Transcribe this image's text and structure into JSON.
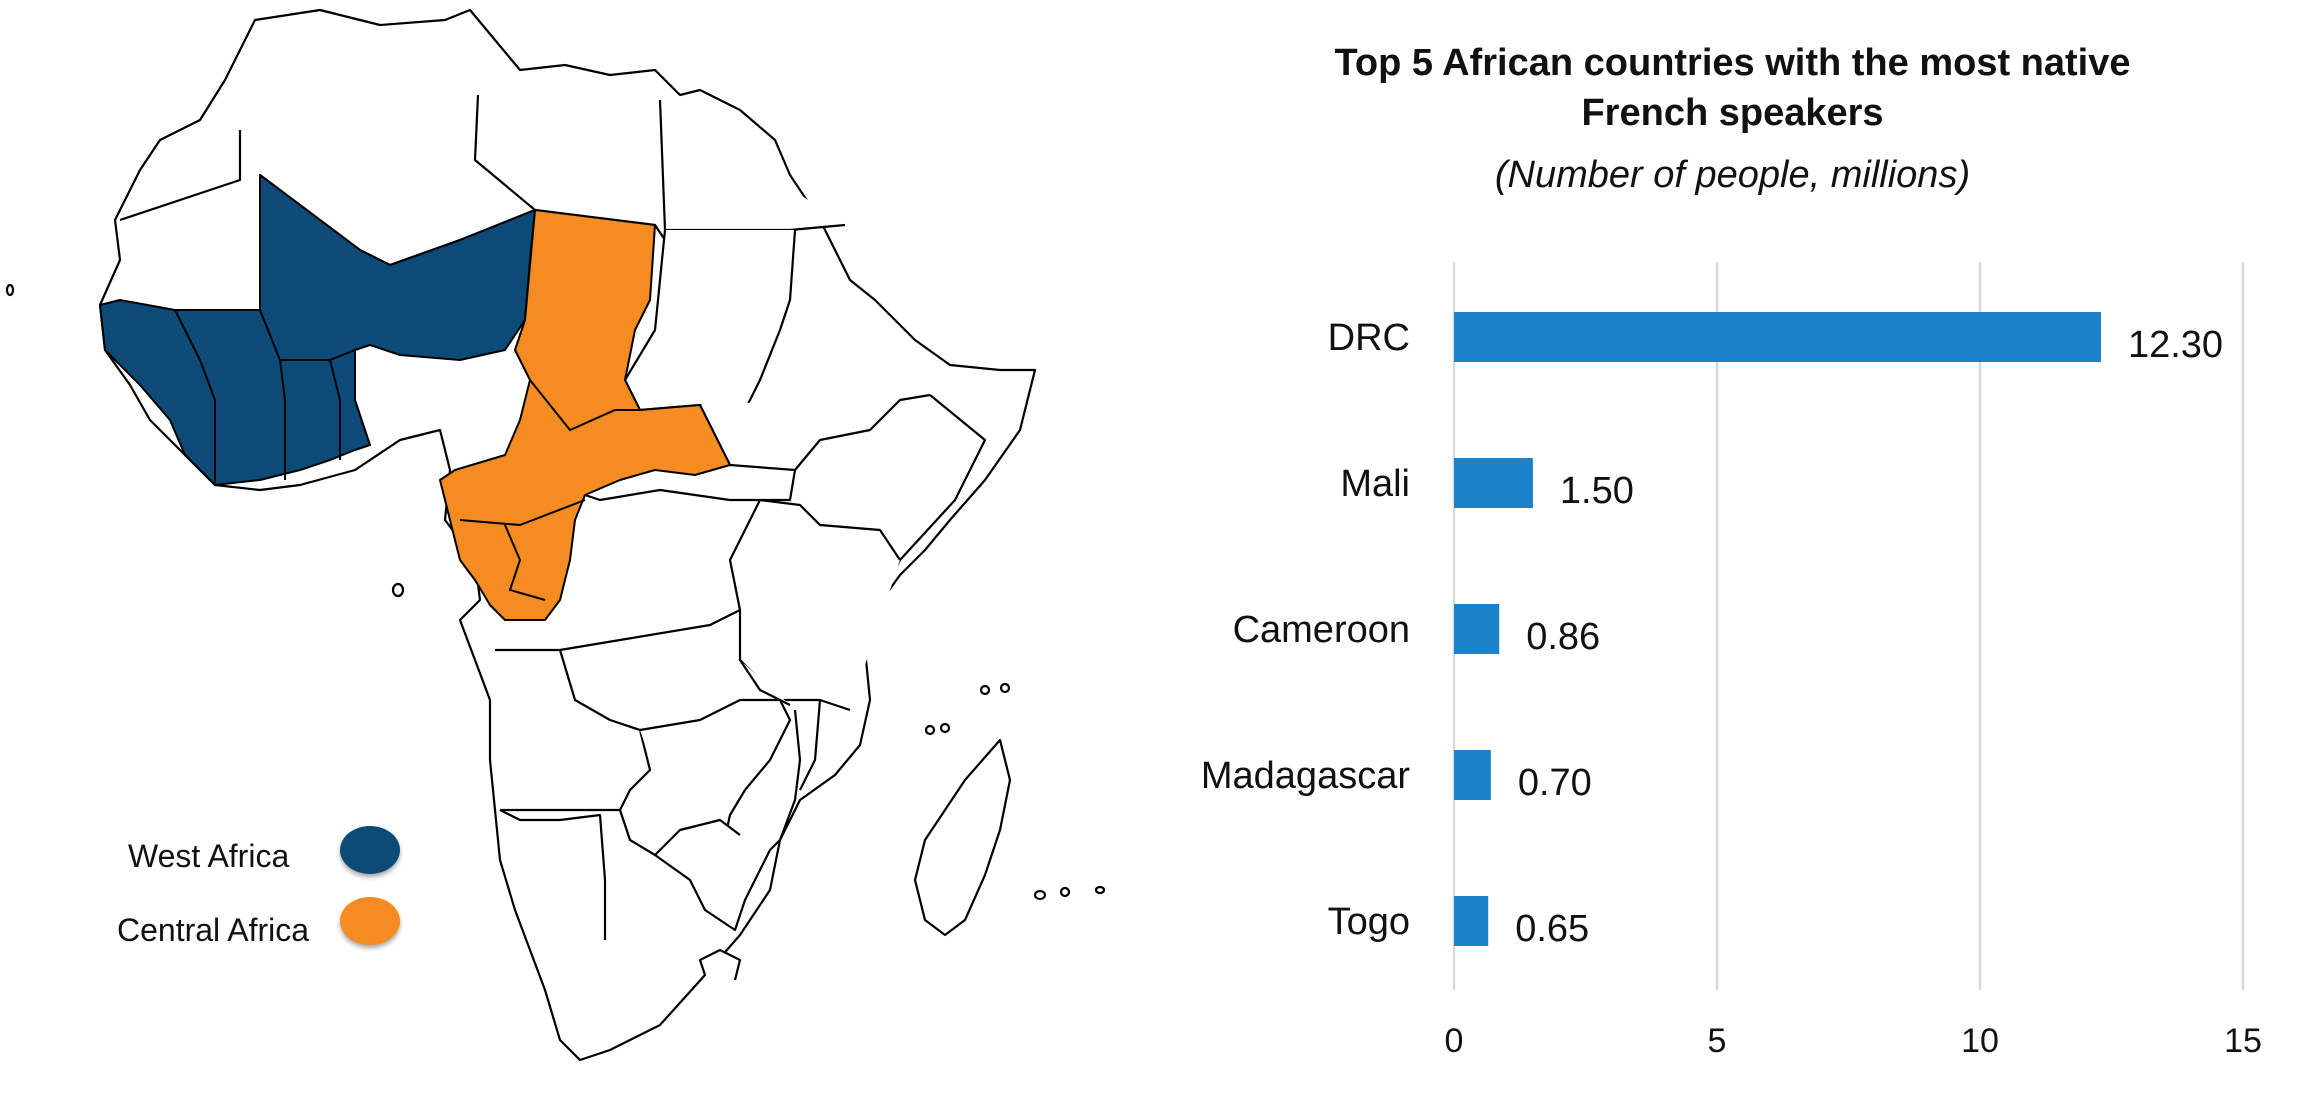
{
  "map": {
    "legend": [
      {
        "label": "West Africa",
        "color": "#0e4a78"
      },
      {
        "label": "Central Africa",
        "color": "#f58c22"
      }
    ]
  },
  "chart_data": {
    "type": "bar",
    "orientation": "horizontal",
    "title_line1": "Top 5 African countries with the most native",
    "title_line2": "French speakers",
    "subtitle": "(Number of people, millions)",
    "categories": [
      "DRC",
      "Mali",
      "Cameroon",
      "Madagascar",
      "Togo"
    ],
    "values": [
      12.3,
      1.5,
      0.86,
      0.7,
      0.65
    ],
    "value_labels": [
      "12.30",
      "1.50",
      "0.86",
      "0.70",
      "0.65"
    ],
    "xlim": [
      0,
      15
    ],
    "x_ticks": [
      0,
      5,
      10,
      15
    ],
    "grid": true,
    "bar_color": "#1b82c7",
    "xlabel": "",
    "ylabel": ""
  }
}
